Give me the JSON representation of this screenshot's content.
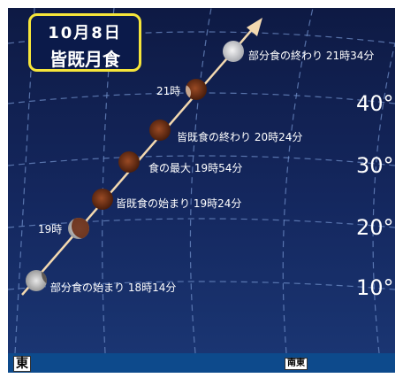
{
  "title": {
    "date": "10月8日",
    "name": "皆既月食"
  },
  "altitudes": [
    "10°",
    "20°",
    "30°",
    "40°"
  ],
  "directions": {
    "east": "東",
    "southeast": "南東"
  },
  "events": [
    {
      "label": "部分食の始まり 18時14分",
      "phase": "partial"
    },
    {
      "label": "19時",
      "phase": "partial"
    },
    {
      "label": "皆既食の始まり 19時24分",
      "phase": "total"
    },
    {
      "label": "食の最大 19時54分",
      "phase": "total"
    },
    {
      "label": "皆既食の終わり 20時24分",
      "phase": "total"
    },
    {
      "label": "21時",
      "phase": "total-edge"
    },
    {
      "label": "部分食の終わり 21時34分",
      "phase": "full"
    }
  ],
  "colors": {
    "sky": "#14275e",
    "grid": "#6f8ec8",
    "path": "#f3d9b0",
    "title_border": "#f6e53a",
    "eclipsed_moon": "#7a3a1c",
    "full_moon": "#e6e8ea"
  }
}
